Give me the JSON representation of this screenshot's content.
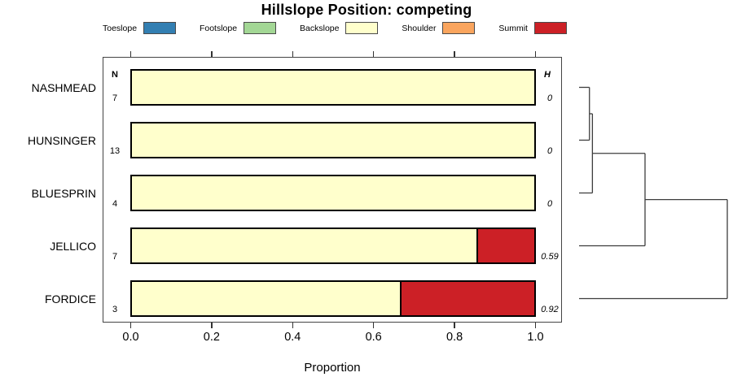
{
  "title": "Hillslope Position: competing",
  "legend": {
    "items": [
      {
        "label": "Toeslope",
        "color": "#337FB2"
      },
      {
        "label": "Footslope",
        "color": "#A3D795"
      },
      {
        "label": "Backslope",
        "color": "#FFFFCC"
      },
      {
        "label": "Shoulder",
        "color": "#FAA55E"
      },
      {
        "label": "Summit",
        "color": "#CC2026"
      }
    ]
  },
  "chart_data": {
    "type": "bar",
    "orientation": "horizontal",
    "stacked": true,
    "title": "Hillslope Position: competing",
    "xlabel": "Proportion",
    "xlim": [
      0,
      1
    ],
    "xtick_labels": [
      "0.0",
      "0.2",
      "0.4",
      "0.6",
      "0.8",
      "1.0"
    ],
    "xtick_values": [
      0.0,
      0.2,
      0.4,
      0.6,
      0.8,
      1.0
    ],
    "grid": false,
    "legend_position": "top",
    "n_header": "N",
    "h_header": "H",
    "class_colors": {
      "Toeslope": "#337FB2",
      "Footslope": "#A3D795",
      "Backslope": "#FFFFCC",
      "Shoulder": "#FAA55E",
      "Summit": "#CC2026"
    },
    "rows": [
      {
        "site": "NASHMEAD",
        "n": "7",
        "h": "0",
        "segments": [
          {
            "class": "Backslope",
            "value": 1.0
          }
        ]
      },
      {
        "site": "HUNSINGER",
        "n": "13",
        "h": "0",
        "segments": [
          {
            "class": "Backslope",
            "value": 1.0
          }
        ]
      },
      {
        "site": "BLUESPRIN",
        "n": "4",
        "h": "0",
        "segments": [
          {
            "class": "Backslope",
            "value": 1.0
          }
        ]
      },
      {
        "site": "JELLICO",
        "n": "7",
        "h": "0.59",
        "segments": [
          {
            "class": "Backslope",
            "value": 0.857
          },
          {
            "class": "Summit",
            "value": 0.143
          }
        ]
      },
      {
        "site": "FORDICE",
        "n": "3",
        "h": "0.92",
        "segments": [
          {
            "class": "Backslope",
            "value": 0.667
          },
          {
            "class": "Summit",
            "value": 0.333
          }
        ]
      }
    ],
    "dendrogram": {
      "leaves": [
        "NASHMEAD",
        "HUNSINGER",
        "BLUESPRIN",
        "JELLICO",
        "FORDICE"
      ],
      "merges": [
        {
          "a": "leaf0",
          "b": "leaf1",
          "height": 0.07
        },
        {
          "a": "merge0",
          "b": "leaf2",
          "height": 0.09
        },
        {
          "a": "merge1",
          "b": "leaf3",
          "height": 0.445
        },
        {
          "a": "merge2",
          "b": "leaf4",
          "height": 1.0
        }
      ]
    }
  }
}
